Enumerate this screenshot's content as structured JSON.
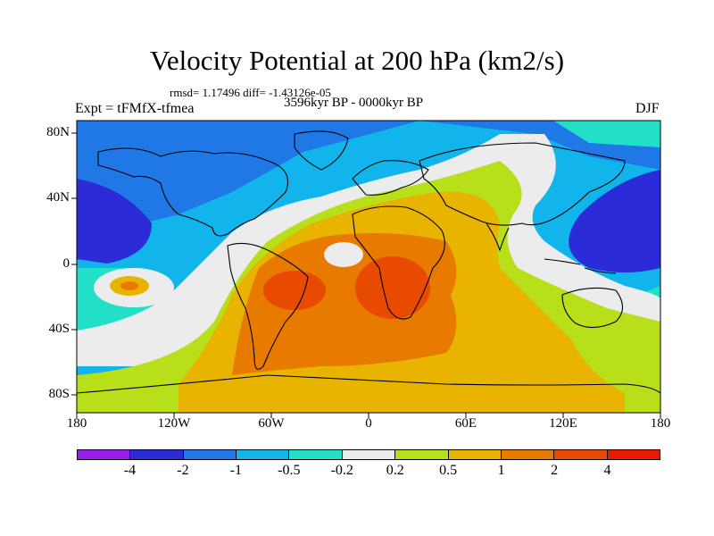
{
  "title": "Velocity Potential at 200 hPa (km2/s)",
  "stats": "rmsd= 1.17496 diff= -1.43126e-05",
  "period": "3596kyr BP - 0000kyr BP",
  "experiment": "Expt = tFMfX-tfmea",
  "season": "DJF",
  "lat_labels": [
    "80N",
    "40N",
    "0",
    "40S",
    "80S"
  ],
  "lon_labels": [
    "180",
    "120W",
    "60W",
    "0",
    "60E",
    "120E",
    "180"
  ],
  "colorbar": {
    "labels": [
      "-4",
      "-2",
      "-1",
      "-0.5",
      "-0.2",
      "0.2",
      "0.5",
      "1",
      "2",
      "4"
    ],
    "colors": [
      "#9b1ee8",
      "#2b2bd8",
      "#1f78e6",
      "#12b4ec",
      "#22e0c8",
      "#ececec",
      "#b8e01a",
      "#e8b400",
      "#e87a00",
      "#e84a00",
      "#e81a00"
    ]
  },
  "map_colors": {
    "ocean_neg_strong": "#2b2bd8",
    "neg_mid": "#1f78e6",
    "neg_light": "#12b4ec",
    "neg_teal": "#22e0c8",
    "neutral": "#ececec",
    "pos_yellowgreen": "#b8e01a",
    "pos_gold": "#e8b400",
    "pos_orange": "#e87a00",
    "pos_red": "#e84a00"
  }
}
